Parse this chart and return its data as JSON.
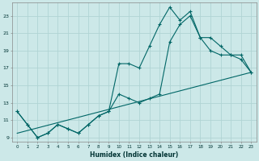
{
  "xlabel": "Humidex (Indice chaleur)",
  "bg_color": "#cce8e8",
  "grid_color": "#b0d4d4",
  "line_color": "#006666",
  "xlim": [
    -0.5,
    23.5
  ],
  "ylim": [
    8.5,
    24.5
  ],
  "xticks": [
    0,
    1,
    2,
    3,
    4,
    5,
    6,
    7,
    8,
    9,
    10,
    11,
    12,
    13,
    14,
    15,
    16,
    17,
    18,
    19,
    20,
    21,
    22,
    23
  ],
  "yticks": [
    9,
    11,
    13,
    15,
    17,
    19,
    21,
    23
  ],
  "line1_x": [
    0,
    1,
    2,
    3,
    4,
    5,
    6,
    7,
    8,
    9,
    10,
    11,
    12,
    13,
    14,
    15,
    16,
    17,
    18,
    19,
    20,
    21,
    22,
    23
  ],
  "line1_y": [
    12,
    10.5,
    9,
    9.5,
    10.5,
    10,
    9.5,
    10.5,
    11.5,
    12,
    14,
    13.5,
    13,
    13.5,
    14,
    20,
    22,
    23,
    20.5,
    19,
    18.5,
    18.5,
    18,
    16.5
  ],
  "line2_x": [
    0,
    1,
    2,
    3,
    4,
    5,
    6,
    7,
    8,
    9,
    10,
    11,
    12,
    13,
    14,
    15,
    16,
    17,
    18,
    19,
    20,
    21,
    22,
    23
  ],
  "line2_y": [
    12,
    10.5,
    9,
    9.5,
    10.5,
    10,
    9.5,
    10.5,
    11.5,
    12,
    17.5,
    17.5,
    17,
    19.5,
    22,
    24,
    22.5,
    23.5,
    20.5,
    20.5,
    19.5,
    18.5,
    18.5,
    16.5
  ],
  "line3_x": [
    0,
    23
  ],
  "line3_y": [
    9.5,
    16.5
  ]
}
